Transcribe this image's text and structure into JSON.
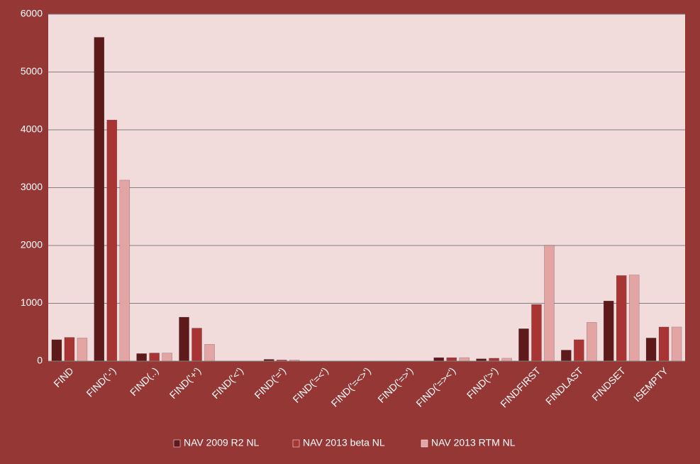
{
  "chart_data": {
    "type": "bar",
    "categories": [
      "FIND",
      "FIND('-')",
      "FIND(..)",
      "FIND('+')",
      "FIND('<')",
      "FIND('=')",
      "FIND('=<')",
      "FIND('=<>')",
      "FIND('=>')",
      "FIND('=><')",
      "FIND('>')",
      "FINDFIRST",
      "FINDLAST",
      "FINDSET",
      "ISEMPTY"
    ],
    "series": [
      {
        "name": "NAV 2009 R2 NL",
        "color": "#5e1a1a",
        "values": [
          370,
          5600,
          130,
          760,
          0,
          30,
          0,
          0,
          0,
          60,
          40,
          560,
          190,
          1040,
          400
        ]
      },
      {
        "name": "NAV 2013 beta NL",
        "color": "#a83434",
        "values": [
          410,
          4170,
          140,
          570,
          0,
          20,
          0,
          0,
          0,
          60,
          50,
          980,
          370,
          1480,
          590
        ]
      },
      {
        "name": "NAV 2013 RTM NL",
        "color": "#e3a4a4",
        "values": [
          400,
          3130,
          140,
          290,
          0,
          20,
          0,
          0,
          0,
          60,
          50,
          2000,
          670,
          1490,
          590
        ]
      }
    ],
    "ylim": [
      0,
      6000
    ],
    "yticks": [
      0,
      1000,
      2000,
      3000,
      4000,
      5000,
      6000
    ],
    "grid": true,
    "legend": "bottom"
  }
}
